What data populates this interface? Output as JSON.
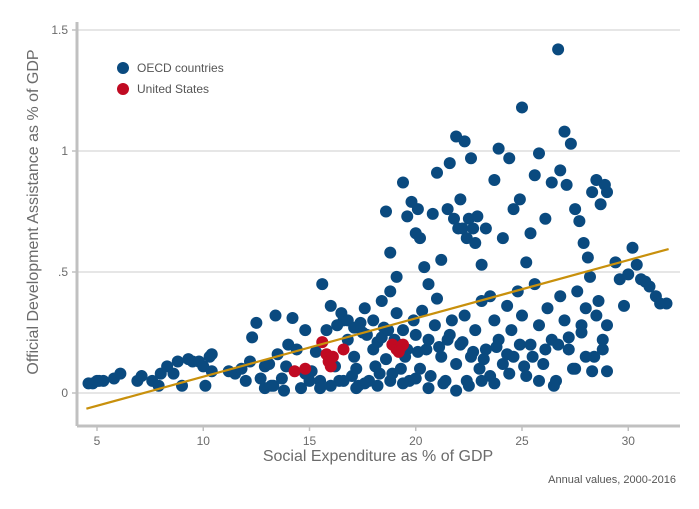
{
  "chart_data": {
    "type": "scatter",
    "title": "",
    "xlabel": "Social Expenditure as % of GDP",
    "ylabel": "Official Development Assistance as % of GDP",
    "note": "Annual values, 2000-2016",
    "xlim": [
      4.0,
      32.5
    ],
    "ylim": [
      -0.1,
      1.5
    ],
    "xticks": [
      5,
      10,
      15,
      20,
      25,
      30
    ],
    "xtick_labels": [
      "5",
      "10",
      "15",
      "20",
      "25",
      "30"
    ],
    "yticks": [
      0,
      0.5,
      1,
      1.5
    ],
    "ytick_labels": [
      "0",
      ".5",
      "1",
      "1.5"
    ],
    "grid": "horizontal",
    "legend": {
      "position": "top-left",
      "entries": [
        "OECD countries",
        "United States"
      ]
    },
    "colors": {
      "oecd": "#0a4a7f",
      "us": "#c00a22",
      "trend": "#c8900c",
      "grid": "#dddddd",
      "axis": "#c0c0c0"
    },
    "trend_line": {
      "x": [
        4.5,
        31.9
      ],
      "y": [
        -0.065,
        0.595
      ]
    },
    "series": [
      {
        "name": "OECD countries",
        "points": [
          [
            4.6,
            0.04
          ],
          [
            4.8,
            0.04
          ],
          [
            5.0,
            0.05
          ],
          [
            5.1,
            0.05
          ],
          [
            5.3,
            0.05
          ],
          [
            5.8,
            0.06
          ],
          [
            6.1,
            0.08
          ],
          [
            6.9,
            0.05
          ],
          [
            7.1,
            0.07
          ],
          [
            7.6,
            0.05
          ],
          [
            7.9,
            0.03
          ],
          [
            8.0,
            0.08
          ],
          [
            8.3,
            0.11
          ],
          [
            8.6,
            0.08
          ],
          [
            8.8,
            0.13
          ],
          [
            9.0,
            0.03
          ],
          [
            9.3,
            0.14
          ],
          [
            9.5,
            0.13
          ],
          [
            9.8,
            0.13
          ],
          [
            10.0,
            0.11
          ],
          [
            10.1,
            0.03
          ],
          [
            10.3,
            0.15
          ],
          [
            10.4,
            0.16
          ],
          [
            10.4,
            0.09
          ],
          [
            11.2,
            0.09
          ],
          [
            11.5,
            0.08
          ],
          [
            11.8,
            0.1
          ],
          [
            12.0,
            0.05
          ],
          [
            12.2,
            0.13
          ],
          [
            12.3,
            0.23
          ],
          [
            12.5,
            0.29
          ],
          [
            12.7,
            0.06
          ],
          [
            12.9,
            0.11
          ],
          [
            13.1,
            0.12
          ],
          [
            13.2,
            0.03
          ],
          [
            13.4,
            0.32
          ],
          [
            13.5,
            0.16
          ],
          [
            13.7,
            0.06
          ],
          [
            13.8,
            0.01
          ],
          [
            13.9,
            0.11
          ],
          [
            14.0,
            0.2
          ],
          [
            14.2,
            0.31
          ],
          [
            14.4,
            0.18
          ],
          [
            14.6,
            0.02
          ],
          [
            14.8,
            0.26
          ],
          [
            15.0,
            0.05
          ],
          [
            15.1,
            0.09
          ],
          [
            15.3,
            0.17
          ],
          [
            15.5,
            0.05
          ],
          [
            15.6,
            0.45
          ],
          [
            15.8,
            0.26
          ],
          [
            16.0,
            0.36
          ],
          [
            16.2,
            0.11
          ],
          [
            16.4,
            0.05
          ],
          [
            16.6,
            0.3
          ],
          [
            16.8,
            0.22
          ],
          [
            17.0,
            0.07
          ],
          [
            17.1,
            0.15
          ],
          [
            17.3,
            0.03
          ],
          [
            17.5,
            0.25
          ],
          [
            17.6,
            0.35
          ],
          [
            17.8,
            0.05
          ],
          [
            18.0,
            0.18
          ],
          [
            18.1,
            0.11
          ],
          [
            18.3,
            0.08
          ],
          [
            18.4,
            0.38
          ],
          [
            18.5,
            0.27
          ],
          [
            18.6,
            0.14
          ],
          [
            18.8,
            0.42
          ],
          [
            18.9,
            0.08
          ],
          [
            19.0,
            0.22
          ],
          [
            19.1,
            0.33
          ],
          [
            19.3,
            0.1
          ],
          [
            19.4,
            0.26
          ],
          [
            19.5,
            0.15
          ],
          [
            19.7,
            0.05
          ],
          [
            19.9,
            0.3
          ],
          [
            20.0,
            0.24
          ],
          [
            20.2,
            0.1
          ],
          [
            20.3,
            0.34
          ],
          [
            20.5,
            0.18
          ],
          [
            20.7,
            0.07
          ],
          [
            20.9,
            0.28
          ],
          [
            21.0,
            0.39
          ],
          [
            21.2,
            0.15
          ],
          [
            21.4,
            0.05
          ],
          [
            21.5,
            0.22
          ],
          [
            21.7,
            0.3
          ],
          [
            21.9,
            0.12
          ],
          [
            22.1,
            0.2
          ],
          [
            22.3,
            0.32
          ],
          [
            22.4,
            0.05
          ],
          [
            22.6,
            0.15
          ],
          [
            22.8,
            0.26
          ],
          [
            23.0,
            0.1
          ],
          [
            23.1,
            0.38
          ],
          [
            23.3,
            0.18
          ],
          [
            23.5,
            0.07
          ],
          [
            23.7,
            0.3
          ],
          [
            23.9,
            0.22
          ],
          [
            24.1,
            0.12
          ],
          [
            24.3,
            0.36
          ],
          [
            24.5,
            0.26
          ],
          [
            24.6,
            0.15
          ],
          [
            24.8,
            0.42
          ],
          [
            25.0,
            0.32
          ],
          [
            25.2,
            0.07
          ],
          [
            25.4,
            0.2
          ],
          [
            25.6,
            0.45
          ],
          [
            25.8,
            0.28
          ],
          [
            26.0,
            0.12
          ],
          [
            26.2,
            0.35
          ],
          [
            26.4,
            0.22
          ],
          [
            26.6,
            0.05
          ],
          [
            26.8,
            0.4
          ],
          [
            27.0,
            0.3
          ],
          [
            27.2,
            0.18
          ],
          [
            27.4,
            0.1
          ],
          [
            27.6,
            0.42
          ],
          [
            27.8,
            0.25
          ],
          [
            28.0,
            0.35
          ],
          [
            28.2,
            0.48
          ],
          [
            28.4,
            0.15
          ],
          [
            28.6,
            0.38
          ],
          [
            28.8,
            0.22
          ],
          [
            29.0,
            0.09
          ],
          [
            18.6,
            0.75
          ],
          [
            18.8,
            0.58
          ],
          [
            19.1,
            0.48
          ],
          [
            19.4,
            0.87
          ],
          [
            19.6,
            0.73
          ],
          [
            19.8,
            0.79
          ],
          [
            20.0,
            0.66
          ],
          [
            20.1,
            0.76
          ],
          [
            20.2,
            0.64
          ],
          [
            20.4,
            0.52
          ],
          [
            20.6,
            0.45
          ],
          [
            20.8,
            0.74
          ],
          [
            21.0,
            0.91
          ],
          [
            21.2,
            0.55
          ],
          [
            21.5,
            0.76
          ],
          [
            21.6,
            0.95
          ],
          [
            21.8,
            0.72
          ],
          [
            21.9,
            1.06
          ],
          [
            22.0,
            0.68
          ],
          [
            22.1,
            0.8
          ],
          [
            22.2,
            0.68
          ],
          [
            22.3,
            1.04
          ],
          [
            22.4,
            0.64
          ],
          [
            22.5,
            0.72
          ],
          [
            22.6,
            0.97
          ],
          [
            22.7,
            0.68
          ],
          [
            22.8,
            0.62
          ],
          [
            22.9,
            0.73
          ],
          [
            23.1,
            0.53
          ],
          [
            23.3,
            0.68
          ],
          [
            23.5,
            0.4
          ],
          [
            23.7,
            0.88
          ],
          [
            23.9,
            1.01
          ],
          [
            24.1,
            0.64
          ],
          [
            24.4,
            0.97
          ],
          [
            24.6,
            0.76
          ],
          [
            24.9,
            0.8
          ],
          [
            25.0,
            1.18
          ],
          [
            25.2,
            0.54
          ],
          [
            25.4,
            0.66
          ],
          [
            25.6,
            0.9
          ],
          [
            25.8,
            0.99
          ],
          [
            26.1,
            0.72
          ],
          [
            26.4,
            0.87
          ],
          [
            26.7,
            1.42
          ],
          [
            26.8,
            0.92
          ],
          [
            27.0,
            1.08
          ],
          [
            27.1,
            0.86
          ],
          [
            27.3,
            1.03
          ],
          [
            27.5,
            0.76
          ],
          [
            27.7,
            0.71
          ],
          [
            27.9,
            0.62
          ],
          [
            28.1,
            0.56
          ],
          [
            28.3,
            0.83
          ],
          [
            28.5,
            0.88
          ],
          [
            28.7,
            0.78
          ],
          [
            28.9,
            0.86
          ],
          [
            29.0,
            0.83
          ],
          [
            29.4,
            0.54
          ],
          [
            29.6,
            0.47
          ],
          [
            29.8,
            0.36
          ],
          [
            30.0,
            0.49
          ],
          [
            30.2,
            0.6
          ],
          [
            30.4,
            0.53
          ],
          [
            30.6,
            0.47
          ],
          [
            30.8,
            0.46
          ],
          [
            31.0,
            0.44
          ],
          [
            31.3,
            0.4
          ],
          [
            31.5,
            0.37
          ],
          [
            31.8,
            0.37
          ],
          [
            27.2,
            0.23
          ],
          [
            27.5,
            0.1
          ],
          [
            27.8,
            0.28
          ],
          [
            28.0,
            0.15
          ],
          [
            28.3,
            0.09
          ],
          [
            28.5,
            0.32
          ],
          [
            28.8,
            0.18
          ],
          [
            29.0,
            0.28
          ],
          [
            16.3,
            0.28
          ],
          [
            16.5,
            0.33
          ],
          [
            16.8,
            0.3
          ],
          [
            17.1,
            0.27
          ],
          [
            17.4,
            0.29
          ],
          [
            17.7,
            0.24
          ],
          [
            18.0,
            0.3
          ],
          [
            18.2,
            0.21
          ],
          [
            18.4,
            0.23
          ],
          [
            18.7,
            0.26
          ],
          [
            19.2,
            0.2
          ],
          [
            19.6,
            0.18
          ],
          [
            20.1,
            0.17
          ],
          [
            20.6,
            0.22
          ],
          [
            21.1,
            0.19
          ],
          [
            21.6,
            0.24
          ],
          [
            22.2,
            0.21
          ],
          [
            22.7,
            0.17
          ],
          [
            23.2,
            0.14
          ],
          [
            23.8,
            0.19
          ],
          [
            24.3,
            0.16
          ],
          [
            24.9,
            0.2
          ],
          [
            25.5,
            0.15
          ],
          [
            26.1,
            0.18
          ],
          [
            26.7,
            0.2
          ],
          [
            17.2,
            0.1
          ],
          [
            17.6,
            0.04
          ],
          [
            18.2,
            0.03
          ],
          [
            18.8,
            0.05
          ],
          [
            19.4,
            0.04
          ],
          [
            20.0,
            0.06
          ],
          [
            20.6,
            0.02
          ],
          [
            21.3,
            0.04
          ],
          [
            21.9,
            0.01
          ],
          [
            22.5,
            0.03
          ],
          [
            23.1,
            0.05
          ],
          [
            23.7,
            0.04
          ],
          [
            24.4,
            0.08
          ],
          [
            25.1,
            0.11
          ],
          [
            25.8,
            0.05
          ],
          [
            26.5,
            0.03
          ],
          [
            12.9,
            0.02
          ],
          [
            13.3,
            0.03
          ],
          [
            14.8,
            0.08
          ],
          [
            15.5,
            0.02
          ],
          [
            16.0,
            0.03
          ],
          [
            16.6,
            0.05
          ],
          [
            17.2,
            0.02
          ]
        ]
      },
      {
        "name": "United States",
        "points": [
          [
            14.3,
            0.09
          ],
          [
            14.8,
            0.1
          ],
          [
            15.6,
            0.21
          ],
          [
            15.8,
            0.16
          ],
          [
            15.9,
            0.13
          ],
          [
            16.0,
            0.11
          ],
          [
            16.1,
            0.15
          ],
          [
            16.6,
            0.18
          ],
          [
            18.9,
            0.2
          ],
          [
            19.1,
            0.18
          ],
          [
            19.3,
            0.19
          ],
          [
            19.4,
            0.2
          ],
          [
            19.2,
            0.17
          ]
        ]
      }
    ]
  }
}
